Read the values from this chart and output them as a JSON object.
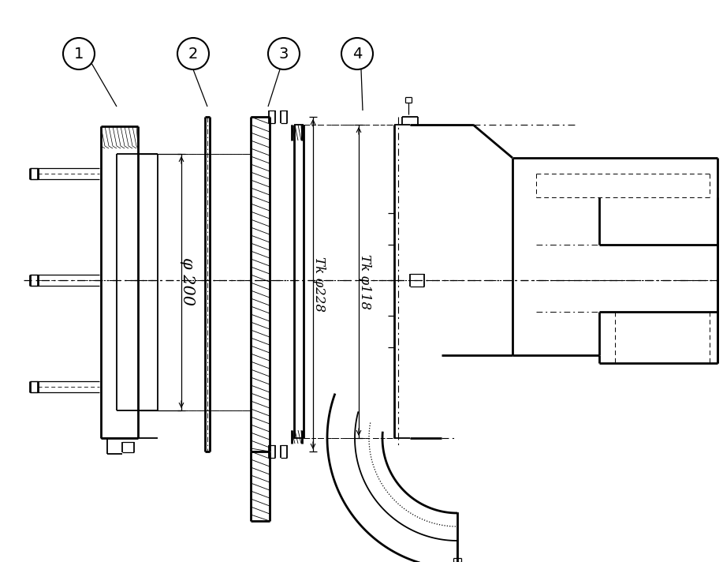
{
  "bg_color": "#ffffff",
  "line_color": "#000000",
  "fig_width": 9.17,
  "fig_height": 7.12,
  "dpi": 100,
  "label_1": "1",
  "label_2": "2",
  "label_3": "3",
  "label_4": "4",
  "dim_phi200": "φ 200",
  "dim_tk_phi228": "Tk φ228",
  "dim_tk_phi118": "Tk φ118"
}
